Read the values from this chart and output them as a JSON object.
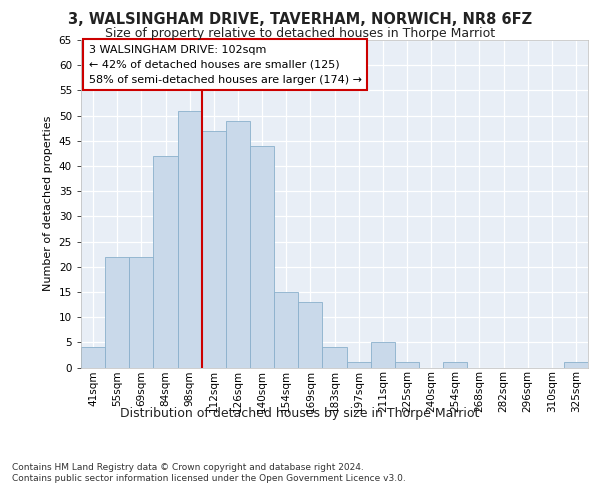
{
  "title": "3, WALSINGHAM DRIVE, TAVERHAM, NORWICH, NR8 6FZ",
  "subtitle": "Size of property relative to detached houses in Thorpe Marriot",
  "xlabel": "Distribution of detached houses by size in Thorpe Marriot",
  "ylabel": "Number of detached properties",
  "bar_labels": [
    "41sqm",
    "55sqm",
    "69sqm",
    "84sqm",
    "98sqm",
    "112sqm",
    "126sqm",
    "140sqm",
    "154sqm",
    "169sqm",
    "183sqm",
    "197sqm",
    "211sqm",
    "225sqm",
    "240sqm",
    "254sqm",
    "268sqm",
    "282sqm",
    "296sqm",
    "310sqm",
    "325sqm"
  ],
  "bar_values_full": [
    4,
    22,
    22,
    42,
    51,
    47,
    49,
    44,
    15,
    13,
    4,
    1,
    5,
    1,
    0,
    1,
    0,
    0,
    0,
    0,
    1
  ],
  "bar_color": "#c9d9ea",
  "bar_edge_color": "#8ab0cc",
  "background_color": "#e8eef6",
  "grid_color": "#ffffff",
  "vline_color": "#cc0000",
  "ylim": [
    0,
    65
  ],
  "yticks": [
    0,
    5,
    10,
    15,
    20,
    25,
    30,
    35,
    40,
    45,
    50,
    55,
    60,
    65
  ],
  "annotation_text": "3 WALSINGHAM DRIVE: 102sqm\n← 42% of detached houses are smaller (125)\n58% of semi-detached houses are larger (174) →",
  "annotation_box_color": "#ffffff",
  "annotation_box_edge": "#cc0000",
  "footnote1": "Contains HM Land Registry data © Crown copyright and database right 2024.",
  "footnote2": "Contains public sector information licensed under the Open Government Licence v3.0.",
  "title_fontsize": 10.5,
  "subtitle_fontsize": 9,
  "xlabel_fontsize": 9,
  "ylabel_fontsize": 8,
  "tick_fontsize": 7.5,
  "annotation_fontsize": 8
}
